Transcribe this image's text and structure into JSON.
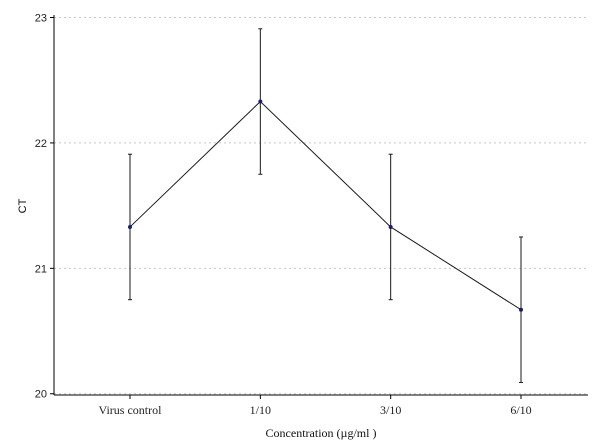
{
  "chart_data": {
    "type": "line",
    "title": "",
    "xlabel": "Concentration (µg/ml )",
    "ylabel": "CT",
    "categories": [
      "Virus control",
      "1/10",
      "3/10",
      "6/10"
    ],
    "series": [
      {
        "values": [
          21.33,
          22.33,
          21.33,
          20.67
        ],
        "error_lower": [
          20.75,
          21.75,
          20.75,
          20.09
        ],
        "error_upper": [
          21.91,
          22.91,
          21.91,
          21.25
        ]
      }
    ],
    "ylim": [
      19.99,
      23.02
    ],
    "yticks": [
      20,
      21,
      22,
      23
    ],
    "grid": "horizontal-dotted",
    "legend": "none",
    "colors": {
      "line": "#1a1a1a",
      "marker": "#1c1c6e",
      "errorbar": "#1a1a1a",
      "grid": "#c8c8c8",
      "axis": "#000000"
    }
  }
}
